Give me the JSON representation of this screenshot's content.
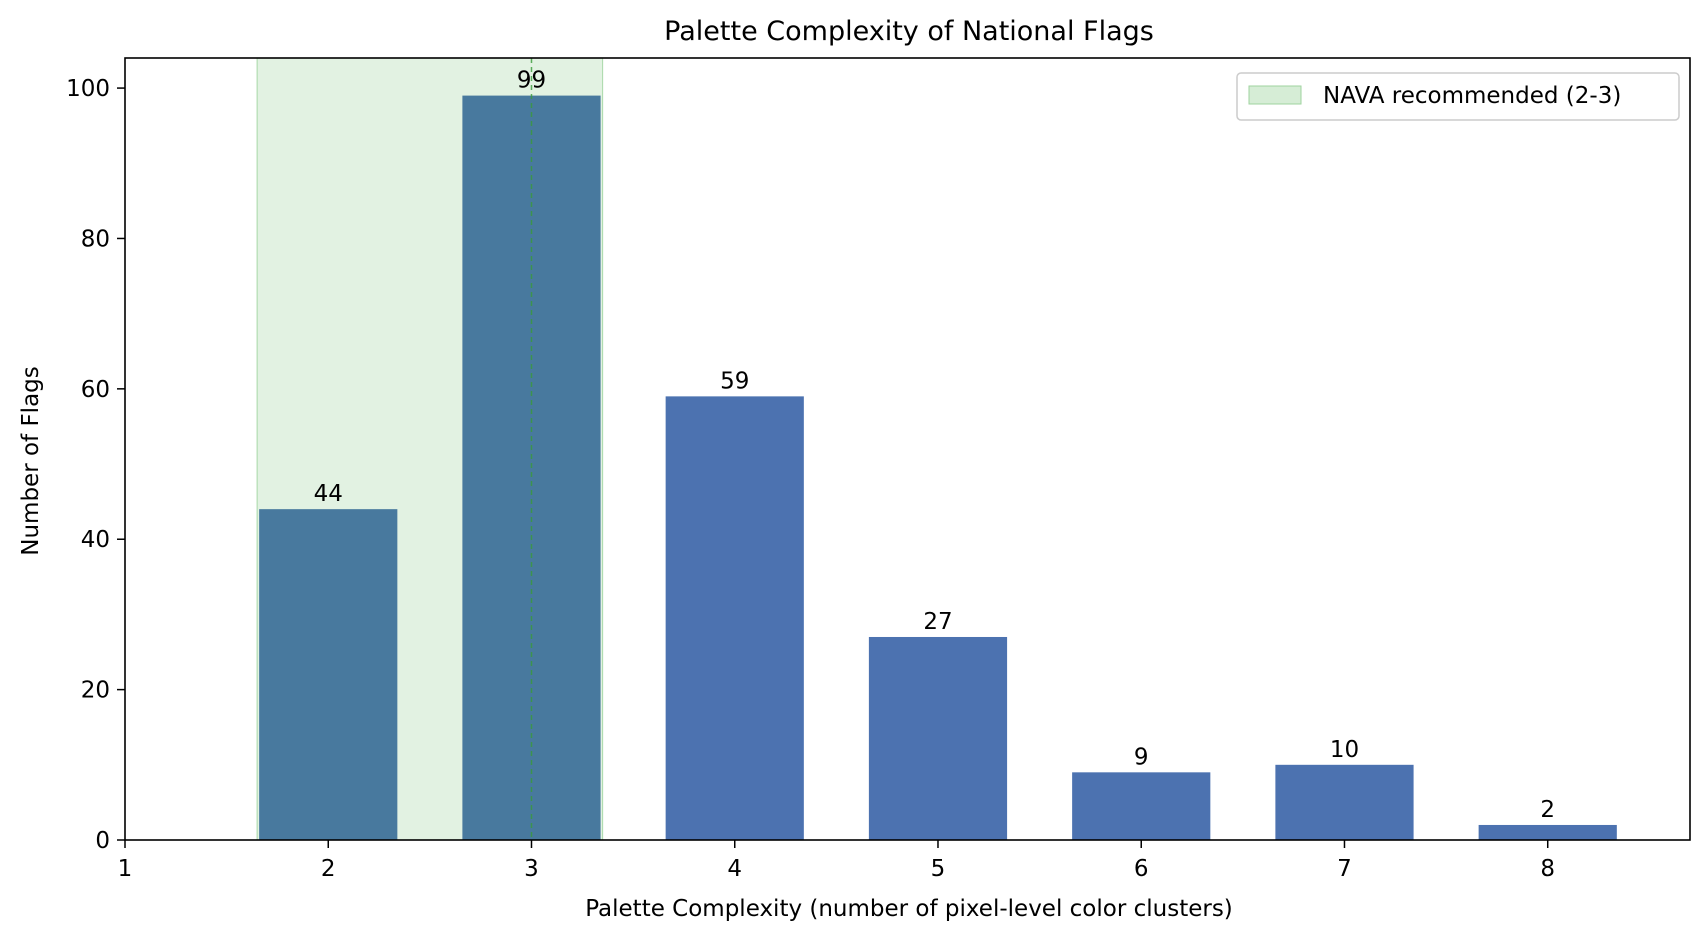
{
  "chart_data": {
    "type": "bar",
    "title": "Palette Complexity of National Flags",
    "xlabel": "Palette Complexity (number of pixel-level color clusters)",
    "ylabel": "Number of Flags",
    "x": [
      2,
      3,
      4,
      5,
      6,
      7,
      8
    ],
    "values": [
      44,
      99,
      59,
      27,
      9,
      10,
      2
    ],
    "data_labels": [
      "44",
      "99",
      "59",
      "27",
      "9",
      "10",
      "2"
    ],
    "xlim": [
      1,
      8.7
    ],
    "ylim": [
      0,
      104
    ],
    "x_ticks": [
      1,
      2,
      3,
      4,
      5,
      6,
      7,
      8
    ],
    "y_ticks": [
      0,
      20,
      40,
      60,
      80,
      100
    ],
    "grid": false,
    "bar_color": "#4c72b0",
    "highlighted_bar_color": "#48799e",
    "highlight_band": {
      "label": "NAVA recommended (2-3)",
      "range": [
        1.65,
        3.35
      ],
      "color": "#d6edd6",
      "reference_line_x": 3,
      "reference_line_color": "#3a9a3a"
    },
    "legend": {
      "position": "top-right",
      "entries": [
        "NAVA recommended (2-3)"
      ]
    }
  }
}
